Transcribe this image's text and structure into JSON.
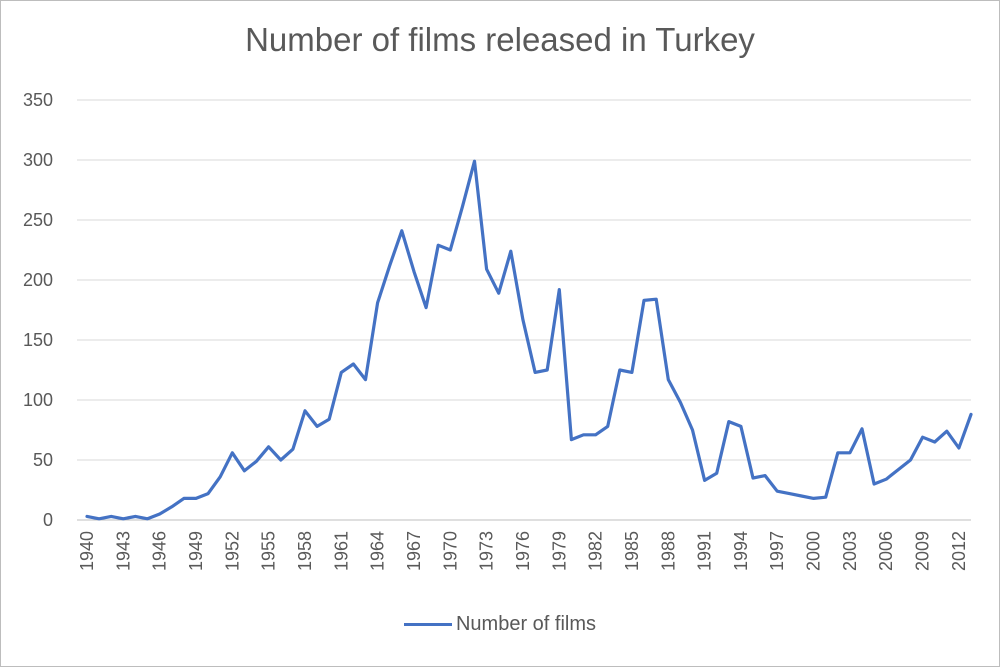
{
  "chart_data": {
    "type": "line",
    "title": "Number of films released in Turkey",
    "xlabel": "",
    "ylabel": "",
    "ylim": [
      0,
      350
    ],
    "yticks": [
      0,
      50,
      100,
      150,
      200,
      250,
      300,
      350
    ],
    "x": [
      1940,
      1941,
      1942,
      1943,
      1944,
      1945,
      1946,
      1947,
      1948,
      1949,
      1950,
      1951,
      1952,
      1953,
      1954,
      1955,
      1956,
      1957,
      1958,
      1959,
      1960,
      1961,
      1962,
      1963,
      1964,
      1965,
      1966,
      1967,
      1968,
      1969,
      1970,
      1971,
      1972,
      1973,
      1974,
      1975,
      1976,
      1977,
      1978,
      1979,
      1980,
      1981,
      1982,
      1983,
      1984,
      1985,
      1986,
      1987,
      1988,
      1989,
      1990,
      1991,
      1992,
      1993,
      1994,
      1995,
      1996,
      1997,
      1998,
      1999,
      2000,
      2001,
      2002,
      2003,
      2004,
      2005,
      2006,
      2007,
      2008,
      2009,
      2010,
      2011,
      2012,
      2013
    ],
    "x_tick_labels": [
      "1940",
      "1943",
      "1946",
      "1949",
      "1952",
      "1955",
      "1958",
      "1961",
      "1964",
      "1967",
      "1970",
      "1973",
      "1976",
      "1979",
      "1982",
      "1985",
      "1988",
      "1991",
      "1994",
      "1997",
      "2000",
      "2003",
      "2006",
      "2009",
      "2012"
    ],
    "grid": true,
    "legend_position": "bottom",
    "series": [
      {
        "name": "Number of films",
        "color": "#4472C4",
        "values": [
          3,
          1,
          3,
          1,
          3,
          1,
          5,
          11,
          18,
          18,
          22,
          36,
          56,
          41,
          49,
          61,
          50,
          59,
          91,
          78,
          84,
          123,
          130,
          117,
          181,
          212,
          241,
          207,
          177,
          229,
          225,
          261,
          299,
          209,
          189,
          224,
          167,
          123,
          125,
          192,
          67,
          71,
          71,
          78,
          125,
          123,
          183,
          184,
          117,
          98,
          75,
          33,
          39,
          82,
          78,
          35,
          37,
          24,
          22,
          20,
          18,
          19,
          56,
          56,
          76,
          30,
          34,
          42,
          50,
          69,
          65,
          74,
          60,
          88
        ]
      }
    ]
  }
}
